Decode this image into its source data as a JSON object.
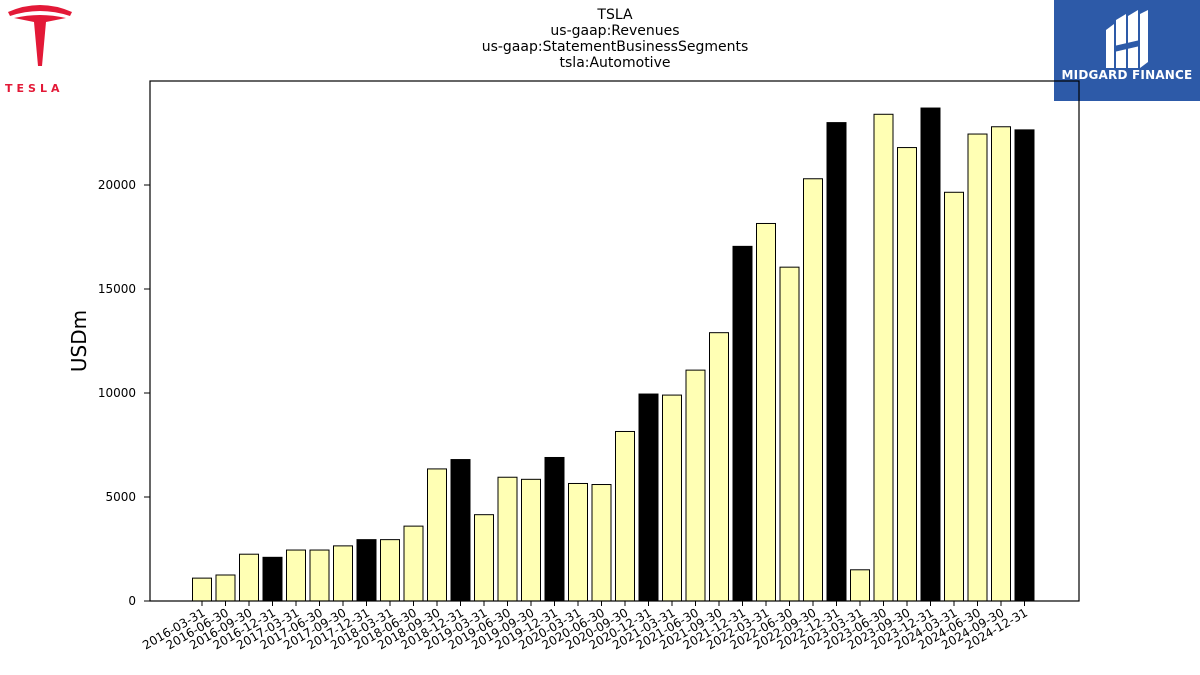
{
  "title_lines": [
    "TSLA",
    "us-gaap:Revenues",
    "us-gaap:StatementBusinessSegments",
    "tsla:Automotive"
  ],
  "logos": {
    "left": {
      "icon": "tesla-logo-icon",
      "wordmark": "TESLA",
      "color": "#e31937"
    },
    "right": {
      "icon": "midgard-logo-icon",
      "text": "MIDGARD FINANCE",
      "bg": "#2d5aa8"
    }
  },
  "chart_data": {
    "type": "bar",
    "title": "TSLA / us-gaap:Revenues / us-gaap:StatementBusinessSegments / tsla:Automotive",
    "xlabel": "",
    "ylabel": "USDm",
    "ylim": [
      0,
      25000
    ],
    "yticks": [
      0,
      5000,
      10000,
      15000,
      20000
    ],
    "grid": false,
    "colors": {
      "quarter": "#ffffb4",
      "year_end": "#000000",
      "edge": "#000000"
    },
    "categories": [
      "2016-03-31",
      "2016-06-30",
      "2016-09-30",
      "2016-12-31",
      "2017-03-31",
      "2017-06-30",
      "2017-09-30",
      "2017-12-31",
      "2018-03-31",
      "2018-06-30",
      "2018-09-30",
      "2018-12-31",
      "2019-03-31",
      "2019-06-30",
      "2019-09-30",
      "2019-12-31",
      "2020-03-31",
      "2020-06-30",
      "2020-09-30",
      "2020-12-31",
      "2021-03-31",
      "2021-06-30",
      "2021-09-30",
      "2021-12-31",
      "2022-03-31",
      "2022-06-30",
      "2022-09-30",
      "2022-12-31",
      "2023-03-31",
      "2023-06-30",
      "2023-09-30",
      "2023-12-31",
      "2024-03-31",
      "2024-06-30",
      "2024-09-30",
      "2024-12-31"
    ],
    "values": [
      1100,
      1250,
      2250,
      2100,
      2450,
      2450,
      2650,
      2950,
      2950,
      3600,
      6350,
      6800,
      4150,
      5950,
      5850,
      6900,
      5650,
      5600,
      8150,
      9950,
      9900,
      11100,
      12900,
      17050,
      18150,
      16050,
      20300,
      23000,
      1500,
      23400,
      21800,
      23700,
      19650,
      22450,
      22800,
      22650
    ],
    "year_end": [
      false,
      false,
      false,
      true,
      false,
      false,
      false,
      true,
      false,
      false,
      false,
      true,
      false,
      false,
      false,
      true,
      false,
      false,
      false,
      true,
      false,
      false,
      false,
      true,
      false,
      false,
      false,
      true,
      false,
      false,
      false,
      true,
      false,
      false,
      false,
      true
    ]
  }
}
